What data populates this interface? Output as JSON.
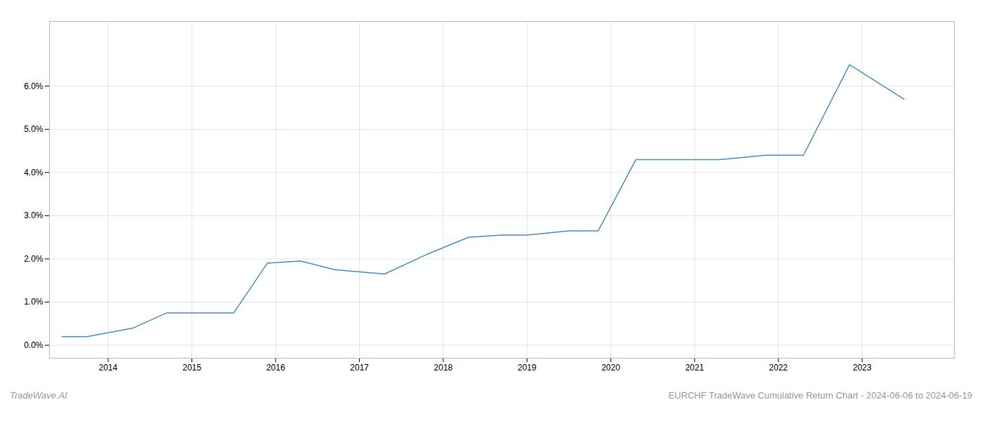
{
  "chart_data": {
    "type": "line",
    "annotations": [
      "TradeWave.AI",
      "EURCHF TradeWave Cumulative Return Chart - 2024-06-06 to 2024-06-19"
    ],
    "x": [
      2013.45,
      2013.75,
      2014.3,
      2014.7,
      2015.5,
      2015.9,
      2016.3,
      2016.7,
      2017.3,
      2017.8,
      2018.3,
      2018.7,
      2019.0,
      2019.5,
      2019.85,
      2020.3,
      2020.85,
      2021.3,
      2021.85,
      2022.3,
      2022.85,
      2023.5
    ],
    "values": [
      0.002,
      0.002,
      0.004,
      0.0075,
      0.0075,
      0.019,
      0.0195,
      0.0175,
      0.0165,
      0.021,
      0.025,
      0.0255,
      0.0255,
      0.0265,
      0.0265,
      0.043,
      0.043,
      0.043,
      0.044,
      0.044,
      0.065,
      0.057
    ],
    "color": "#4a90c4",
    "xlim": [
      2013.3,
      2024.1
    ],
    "ylim": [
      -0.003,
      0.075
    ],
    "xticks": [
      2014,
      2015,
      2016,
      2017,
      2018,
      2019,
      2020,
      2021,
      2022,
      2023
    ],
    "yticks": [
      {
        "value": 0,
        "label": "0.0%"
      },
      {
        "value": 0.01,
        "label": "1.0%"
      },
      {
        "value": 0.02,
        "label": "2.0%"
      },
      {
        "value": 0.03,
        "label": "3.0%"
      },
      {
        "value": 0.04,
        "label": "4.0%"
      },
      {
        "value": 0.05,
        "label": "5.0%"
      },
      {
        "value": 0.06,
        "label": "6.0%"
      }
    ],
    "grid": true
  }
}
